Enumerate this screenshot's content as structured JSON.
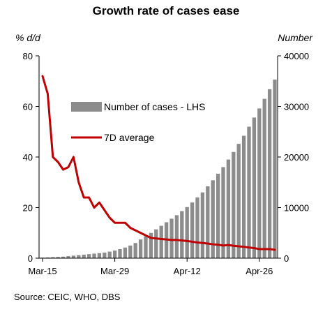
{
  "chart_data": {
    "type": "bar+line",
    "title": "Growth rate of cases ease",
    "ylabel_left": "% d/d",
    "ylabel_right": "Number",
    "ylim_left": [
      0,
      80
    ],
    "ylim_right": [
      0,
      40000
    ],
    "yticks_left": [
      "0",
      "20",
      "40",
      "60",
      "80"
    ],
    "yticks_right": [
      "0",
      "10000",
      "20000",
      "30000",
      "40000"
    ],
    "xticks": [
      {
        "label": "Mar-15",
        "day": 0
      },
      {
        "label": "Mar-29",
        "day": 14
      },
      {
        "label": "Apr-12",
        "day": 28
      },
      {
        "label": "Apr-26",
        "day": 42
      }
    ],
    "legend_position": "upper-left",
    "series": [
      {
        "name": "Number of cases - LHS",
        "kind": "bar",
        "axis": "right",
        "color": "#8c8c8c",
        "values": [
          100,
          150,
          200,
          250,
          300,
          400,
          500,
          600,
          700,
          800,
          900,
          1000,
          1100,
          1300,
          1500,
          1800,
          2100,
          2500,
          3000,
          3700,
          4300,
          5000,
          5700,
          6400,
          7100,
          7800,
          8500,
          9300,
          10100,
          11000,
          12000,
          13000,
          14200,
          15400,
          16700,
          18000,
          19500,
          21000,
          22600,
          24200,
          26000,
          27800,
          29600,
          31500,
          33400,
          35300
        ]
      },
      {
        "name": "7D average",
        "kind": "line",
        "axis": "left",
        "color": "#c00000",
        "values": [
          72,
          65,
          40,
          38,
          35,
          36,
          40,
          30,
          24,
          24,
          20,
          22,
          19,
          16,
          14,
          14,
          14,
          12,
          11,
          10,
          9,
          8,
          7.8,
          7.6,
          7.4,
          7.2,
          7.2,
          7,
          6.8,
          6.5,
          6.2,
          6,
          5.8,
          5.5,
          5.3,
          5,
          5.2,
          4.9,
          4.7,
          4.5,
          4.2,
          4,
          3.6,
          3.6,
          3.6,
          3.3
        ]
      }
    ]
  },
  "source": "Source: CEIC, WHO, DBS"
}
